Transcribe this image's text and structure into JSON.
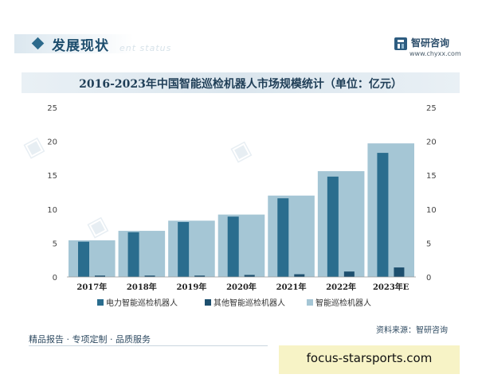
{
  "header": {
    "title": "发展现状",
    "subtitle_en": "ent status",
    "brand_name": "智研咨询",
    "brand_url": "www.chyxx.com"
  },
  "chart_data": {
    "type": "bar",
    "title": "2016-2023年中国智能巡检机器人市场规模统计（单位：亿元）",
    "categories": [
      "2017年",
      "2018年",
      "2019年",
      "2020年",
      "2021年",
      "2022年",
      "2023年E"
    ],
    "series": [
      {
        "name": "电力智能巡检机器人",
        "values": [
          5.2,
          6.6,
          8.1,
          8.9,
          11.6,
          14.8,
          18.3
        ],
        "color": "#2a6d8e"
      },
      {
        "name": "其他智能巡检机器人",
        "values": [
          0.2,
          0.2,
          0.2,
          0.3,
          0.4,
          0.8,
          1.4
        ],
        "color": "#1d4f6e"
      },
      {
        "name": "智能巡检机器人",
        "values": [
          5.4,
          6.8,
          8.3,
          9.2,
          12.0,
          15.6,
          19.7
        ],
        "color": "#a5c6d5"
      }
    ],
    "ylim": [
      0,
      25
    ],
    "yticks": [
      "0",
      "5",
      "10",
      "15",
      "20",
      "25"
    ],
    "legend_position": "bottom"
  },
  "footer": {
    "left": "精品报告 · 专项定制 · 品质服务",
    "right": "资料来源：智研咨询"
  },
  "overlay": {
    "url": "focus-starsports.com"
  }
}
